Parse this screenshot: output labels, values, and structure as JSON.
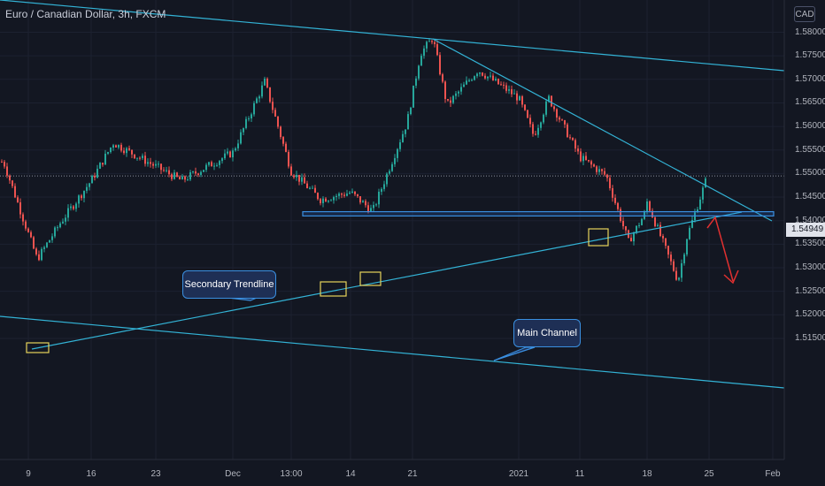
{
  "header": {
    "title": "Euro / Canadian Dollar, 3h, FXCM",
    "currency_badge": "CAD"
  },
  "price_axis": {
    "labels": [
      "1.58000",
      "1.57500",
      "1.57000",
      "1.56500",
      "1.56000",
      "1.55500",
      "1.55000",
      "1.54500",
      "1.54000",
      "1.53500",
      "1.53000",
      "1.52500",
      "1.52000",
      "1.51500"
    ],
    "current_price": "1.54949"
  },
  "time_axis": {
    "labels": [
      "9",
      "16",
      "23",
      "Dec",
      "13:00",
      "14",
      "21",
      "2021",
      "11",
      "18",
      "25",
      "Feb"
    ]
  },
  "annotations": {
    "secondary_trendline": "Secondary Trendline",
    "main_channel": "Main Channel"
  },
  "colors": {
    "background": "#131722",
    "bull": "#26a69a",
    "bear": "#ef5350",
    "trendline": "#33b3d6",
    "arrow": "#e03030"
  },
  "chart_data": {
    "type": "candlestick",
    "symbol": "Euro / Canadian Dollar",
    "interval": "3h",
    "source": "FXCM",
    "ylim": [
      1.5135,
      1.5815
    ],
    "close_path": [
      {
        "x": "9",
        "y": 1.5525
      },
      {
        "x": "~Nov 10",
        "y": 1.5318
      },
      {
        "x": "~Nov 13",
        "y": 1.5395
      },
      {
        "x": "16",
        "y": 1.5485
      },
      {
        "x": "~Nov 18",
        "y": 1.5565
      },
      {
        "x": "23",
        "y": 1.5515
      },
      {
        "x": "~Nov 28",
        "y": 1.5485
      },
      {
        "x": "Dec",
        "y": 1.5545
      },
      {
        "x": "~Dec 4",
        "y": 1.5695
      },
      {
        "x": "13:00",
        "y": 1.5505
      },
      {
        "x": "~Dec 11",
        "y": 1.5445
      },
      {
        "x": "14",
        "y": 1.546
      },
      {
        "x": "~Dec 16",
        "y": 1.542
      },
      {
        "x": "~Dec 18",
        "y": 1.561
      },
      {
        "x": "21",
        "y": 1.5755
      },
      {
        "x": "~Dec 22",
        "y": 1.5788
      },
      {
        "x": "~Dec 25",
        "y": 1.5645
      },
      {
        "x": "~Dec 29",
        "y": 1.572
      },
      {
        "x": "2021",
        "y": 1.566
      },
      {
        "x": "~Jan 5",
        "y": 1.558
      },
      {
        "x": "~Jan 7",
        "y": 1.566
      },
      {
        "x": "11",
        "y": 1.5535
      },
      {
        "x": "~Jan 13",
        "y": 1.5495
      },
      {
        "x": "~Jan 15",
        "y": 1.5355
      },
      {
        "x": "~Jan 17",
        "y": 1.542
      },
      {
        "x": "18",
        "y": 1.544
      },
      {
        "x": "~Jan 21",
        "y": 1.5272
      },
      {
        "x": "~Jan 23",
        "y": 1.5365
      },
      {
        "x": "25",
        "y": 1.5494
      }
    ],
    "lines": [
      {
        "name": "Main Channel",
        "kind": "channel"
      },
      {
        "name": "Secondary Trendline",
        "kind": "trendline"
      }
    ],
    "support_zone": [
      1.541,
      1.5419
    ],
    "projection": {
      "from": 1.552,
      "to": 1.5418
    }
  }
}
